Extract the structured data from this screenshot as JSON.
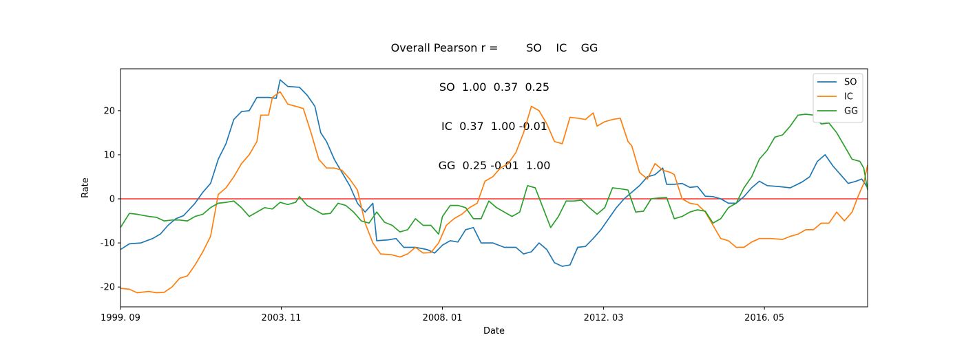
{
  "chart_data": {
    "type": "line",
    "title_lines": [
      "Overall Pearson r =        SO    IC    GG",
      "SO  1.00  0.37  0.25",
      "IC  0.37  1.00 -0.01",
      "GG  0.25 -0.01  1.00"
    ],
    "xlabel": "Date",
    "ylabel": "Rate",
    "xlim": [
      1999.67,
      2019.0
    ],
    "ylim": [
      -24.5,
      29.5
    ],
    "x_ticks": [
      {
        "label": "1999. 09",
        "x": 1999.67
      },
      {
        "label": "2003. 11",
        "x": 2003.83
      },
      {
        "label": "2008. 01",
        "x": 2008.0
      },
      {
        "label": "2012. 03",
        "x": 2012.17
      },
      {
        "label": "2016. 05",
        "x": 2016.33
      }
    ],
    "y_ticks": [
      -20,
      -10,
      0,
      10,
      20
    ],
    "reference_line": {
      "y": 0,
      "color": "#ff0000"
    },
    "legend": "top-right",
    "series": [
      {
        "name": "SO",
        "color": "#1f77b4",
        "points": [
          [
            1999.67,
            -11.5
          ],
          [
            1999.9,
            -10.2
          ],
          [
            2000.2,
            -10.0
          ],
          [
            2000.5,
            -9.0
          ],
          [
            2000.7,
            -8.0
          ],
          [
            2000.9,
            -6.0
          ],
          [
            2001.1,
            -4.5
          ],
          [
            2001.3,
            -3.8
          ],
          [
            2001.6,
            -1.0
          ],
          [
            2001.8,
            1.5
          ],
          [
            2002.0,
            3.5
          ],
          [
            2002.2,
            9.0
          ],
          [
            2002.4,
            12.5
          ],
          [
            2002.6,
            18.0
          ],
          [
            2002.8,
            19.8
          ],
          [
            2003.0,
            20.0
          ],
          [
            2003.2,
            23.0
          ],
          [
            2003.5,
            23.0
          ],
          [
            2003.7,
            22.8
          ],
          [
            2003.8,
            27.0
          ],
          [
            2004.0,
            25.5
          ],
          [
            2004.3,
            25.3
          ],
          [
            2004.5,
            23.5
          ],
          [
            2004.7,
            21.0
          ],
          [
            2004.85,
            15.0
          ],
          [
            2005.0,
            13.0
          ],
          [
            2005.2,
            9.0
          ],
          [
            2005.4,
            6.0
          ],
          [
            2005.6,
            3.0
          ],
          [
            2005.8,
            -1.0
          ],
          [
            2006.0,
            -3.0
          ],
          [
            2006.2,
            -1.0
          ],
          [
            2006.3,
            -9.5
          ],
          [
            2006.6,
            -9.3
          ],
          [
            2006.8,
            -9.0
          ],
          [
            2007.0,
            -11.0
          ],
          [
            2007.3,
            -11.0
          ],
          [
            2007.6,
            -11.5
          ],
          [
            2007.8,
            -12.3
          ],
          [
            2008.0,
            -10.5
          ],
          [
            2008.2,
            -9.5
          ],
          [
            2008.4,
            -9.8
          ],
          [
            2008.6,
            -7.0
          ],
          [
            2008.8,
            -6.5
          ],
          [
            2009.0,
            -10.0
          ],
          [
            2009.3,
            -10.0
          ],
          [
            2009.6,
            -11.0
          ],
          [
            2009.9,
            -11.0
          ],
          [
            2010.1,
            -12.5
          ],
          [
            2010.3,
            -12.0
          ],
          [
            2010.5,
            -10.0
          ],
          [
            2010.7,
            -11.5
          ],
          [
            2010.9,
            -14.5
          ],
          [
            2011.1,
            -15.3
          ],
          [
            2011.3,
            -15.0
          ],
          [
            2011.5,
            -11.0
          ],
          [
            2011.7,
            -10.8
          ],
          [
            2011.9,
            -9.0
          ],
          [
            2012.1,
            -7.0
          ],
          [
            2012.3,
            -4.5
          ],
          [
            2012.5,
            -2.0
          ],
          [
            2012.7,
            0.0
          ],
          [
            2012.9,
            1.5
          ],
          [
            2013.1,
            3.0
          ],
          [
            2013.3,
            5.0
          ],
          [
            2013.5,
            5.5
          ],
          [
            2013.7,
            7.0
          ],
          [
            2013.8,
            3.3
          ],
          [
            2014.0,
            3.3
          ],
          [
            2014.2,
            3.5
          ],
          [
            2014.4,
            2.6
          ],
          [
            2014.6,
            2.8
          ],
          [
            2014.8,
            0.6
          ],
          [
            2015.0,
            0.5
          ],
          [
            2015.2,
            0.0
          ],
          [
            2015.4,
            -1.0
          ],
          [
            2015.6,
            -1.0
          ],
          [
            2015.8,
            0.5
          ],
          [
            2016.0,
            2.5
          ],
          [
            2016.2,
            4.0
          ],
          [
            2016.4,
            3.0
          ],
          [
            2016.7,
            2.8
          ],
          [
            2017.0,
            2.5
          ],
          [
            2017.3,
            3.8
          ],
          [
            2017.5,
            5.0
          ],
          [
            2017.7,
            8.5
          ],
          [
            2017.9,
            10.0
          ],
          [
            2018.1,
            7.5
          ],
          [
            2018.3,
            5.5
          ],
          [
            2018.5,
            3.5
          ],
          [
            2018.7,
            4.0
          ],
          [
            2018.85,
            4.5
          ],
          [
            2019.0,
            2.5
          ]
        ]
      },
      {
        "name": "IC",
        "color": "#ff7f0e",
        "points": [
          [
            1999.67,
            -20.3
          ],
          [
            1999.9,
            -20.5
          ],
          [
            2000.1,
            -21.3
          ],
          [
            2000.4,
            -21.0
          ],
          [
            2000.6,
            -21.3
          ],
          [
            2000.8,
            -21.2
          ],
          [
            2001.0,
            -20.0
          ],
          [
            2001.2,
            -18.0
          ],
          [
            2001.4,
            -17.5
          ],
          [
            2001.6,
            -15.0
          ],
          [
            2001.8,
            -12.0
          ],
          [
            2002.0,
            -8.5
          ],
          [
            2002.2,
            1.0
          ],
          [
            2002.4,
            2.5
          ],
          [
            2002.6,
            5.0
          ],
          [
            2002.8,
            8.0
          ],
          [
            2003.0,
            10.0
          ],
          [
            2003.2,
            13.0
          ],
          [
            2003.3,
            19.0
          ],
          [
            2003.5,
            19.0
          ],
          [
            2003.6,
            23.0
          ],
          [
            2003.8,
            24.3
          ],
          [
            2004.0,
            21.5
          ],
          [
            2004.2,
            21.0
          ],
          [
            2004.4,
            20.5
          ],
          [
            2004.6,
            15.0
          ],
          [
            2004.8,
            9.0
          ],
          [
            2005.0,
            7.0
          ],
          [
            2005.2,
            7.0
          ],
          [
            2005.4,
            6.5
          ],
          [
            2005.6,
            4.5
          ],
          [
            2005.8,
            2.0
          ],
          [
            2006.0,
            -5.5
          ],
          [
            2006.2,
            -10.0
          ],
          [
            2006.4,
            -12.5
          ],
          [
            2006.7,
            -12.7
          ],
          [
            2006.9,
            -13.2
          ],
          [
            2007.1,
            -12.5
          ],
          [
            2007.3,
            -11.0
          ],
          [
            2007.5,
            -12.3
          ],
          [
            2007.7,
            -12.2
          ],
          [
            2007.9,
            -10.0
          ],
          [
            2008.1,
            -6.0
          ],
          [
            2008.3,
            -4.5
          ],
          [
            2008.5,
            -3.5
          ],
          [
            2008.7,
            -2.0
          ],
          [
            2008.9,
            -1.0
          ],
          [
            2009.1,
            4.0
          ],
          [
            2009.3,
            5.0
          ],
          [
            2009.5,
            7.0
          ],
          [
            2009.7,
            8.0
          ],
          [
            2009.9,
            10.5
          ],
          [
            2010.1,
            15.0
          ],
          [
            2010.3,
            21.0
          ],
          [
            2010.5,
            20.0
          ],
          [
            2010.7,
            17.0
          ],
          [
            2010.9,
            13.0
          ],
          [
            2011.1,
            12.5
          ],
          [
            2011.3,
            18.5
          ],
          [
            2011.5,
            18.3
          ],
          [
            2011.7,
            18.0
          ],
          [
            2011.9,
            19.5
          ],
          [
            2012.0,
            16.5
          ],
          [
            2012.2,
            17.5
          ],
          [
            2012.4,
            18.0
          ],
          [
            2012.6,
            18.3
          ],
          [
            2012.8,
            13.0
          ],
          [
            2012.9,
            12.0
          ],
          [
            2013.1,
            6.0
          ],
          [
            2013.3,
            4.5
          ],
          [
            2013.5,
            8.0
          ],
          [
            2013.7,
            6.5
          ],
          [
            2013.9,
            6.0
          ],
          [
            2014.0,
            5.5
          ],
          [
            2014.2,
            0.0
          ],
          [
            2014.4,
            -1.0
          ],
          [
            2014.6,
            -1.3
          ],
          [
            2014.8,
            -3.0
          ],
          [
            2015.0,
            -6.0
          ],
          [
            2015.2,
            -9.0
          ],
          [
            2015.4,
            -9.5
          ],
          [
            2015.6,
            -11.0
          ],
          [
            2015.8,
            -11.0
          ],
          [
            2016.0,
            -9.8
          ],
          [
            2016.2,
            -9.0
          ],
          [
            2016.5,
            -9.0
          ],
          [
            2016.8,
            -9.2
          ],
          [
            2017.0,
            -8.5
          ],
          [
            2017.2,
            -8.0
          ],
          [
            2017.4,
            -7.0
          ],
          [
            2017.6,
            -7.0
          ],
          [
            2017.8,
            -5.5
          ],
          [
            2018.0,
            -5.5
          ],
          [
            2018.2,
            -3.0
          ],
          [
            2018.4,
            -5.0
          ],
          [
            2018.6,
            -3.0
          ],
          [
            2018.75,
            0.5
          ],
          [
            2018.9,
            3.5
          ],
          [
            2019.0,
            7.7
          ]
        ]
      },
      {
        "name": "GG",
        "color": "#2ca02c",
        "points": [
          [
            1999.67,
            -6.5
          ],
          [
            1999.9,
            -3.3
          ],
          [
            2000.1,
            -3.5
          ],
          [
            2000.4,
            -4.0
          ],
          [
            2000.6,
            -4.2
          ],
          [
            2000.8,
            -5.0
          ],
          [
            2001.0,
            -4.8
          ],
          [
            2001.2,
            -4.8
          ],
          [
            2001.4,
            -5.0
          ],
          [
            2001.6,
            -4.0
          ],
          [
            2001.8,
            -3.5
          ],
          [
            2002.0,
            -2.0
          ],
          [
            2002.2,
            -1.0
          ],
          [
            2002.4,
            -0.8
          ],
          [
            2002.6,
            -0.5
          ],
          [
            2002.8,
            -2.0
          ],
          [
            2003.0,
            -4.0
          ],
          [
            2003.2,
            -3.0
          ],
          [
            2003.4,
            -2.0
          ],
          [
            2003.6,
            -2.3
          ],
          [
            2003.8,
            -0.8
          ],
          [
            2004.0,
            -1.3
          ],
          [
            2004.2,
            -0.8
          ],
          [
            2004.3,
            0.5
          ],
          [
            2004.5,
            -1.5
          ],
          [
            2004.7,
            -2.5
          ],
          [
            2004.9,
            -3.5
          ],
          [
            2005.1,
            -3.3
          ],
          [
            2005.3,
            -1.0
          ],
          [
            2005.5,
            -1.5
          ],
          [
            2005.7,
            -3.0
          ],
          [
            2005.9,
            -5.0
          ],
          [
            2006.1,
            -5.5
          ],
          [
            2006.3,
            -3.0
          ],
          [
            2006.5,
            -5.3
          ],
          [
            2006.7,
            -6.0
          ],
          [
            2006.9,
            -7.5
          ],
          [
            2007.1,
            -7.0
          ],
          [
            2007.3,
            -4.5
          ],
          [
            2007.5,
            -6.0
          ],
          [
            2007.7,
            -6.0
          ],
          [
            2007.9,
            -8.0
          ],
          [
            2008.0,
            -4.0
          ],
          [
            2008.2,
            -1.5
          ],
          [
            2008.4,
            -1.5
          ],
          [
            2008.6,
            -2.0
          ],
          [
            2008.8,
            -4.5
          ],
          [
            2009.0,
            -4.5
          ],
          [
            2009.2,
            -0.5
          ],
          [
            2009.4,
            -2.0
          ],
          [
            2009.6,
            -3.0
          ],
          [
            2009.8,
            -4.0
          ],
          [
            2010.0,
            -3.0
          ],
          [
            2010.2,
            3.0
          ],
          [
            2010.4,
            2.5
          ],
          [
            2010.6,
            -2.0
          ],
          [
            2010.8,
            -6.5
          ],
          [
            2011.0,
            -4.0
          ],
          [
            2011.2,
            -0.5
          ],
          [
            2011.4,
            -0.5
          ],
          [
            2011.6,
            -0.3
          ],
          [
            2011.8,
            -2.0
          ],
          [
            2012.0,
            -3.5
          ],
          [
            2012.2,
            -2.0
          ],
          [
            2012.4,
            2.5
          ],
          [
            2012.6,
            2.3
          ],
          [
            2012.8,
            2.0
          ],
          [
            2013.0,
            -3.0
          ],
          [
            2013.2,
            -2.8
          ],
          [
            2013.4,
            0.0
          ],
          [
            2013.6,
            0.2
          ],
          [
            2013.8,
            0.3
          ],
          [
            2014.0,
            -4.5
          ],
          [
            2014.2,
            -4.0
          ],
          [
            2014.4,
            -3.0
          ],
          [
            2014.6,
            -2.5
          ],
          [
            2014.8,
            -2.8
          ],
          [
            2015.0,
            -5.5
          ],
          [
            2015.2,
            -4.5
          ],
          [
            2015.4,
            -2.0
          ],
          [
            2015.6,
            -1.0
          ],
          [
            2015.8,
            2.5
          ],
          [
            2016.0,
            5.0
          ],
          [
            2016.2,
            9.0
          ],
          [
            2016.4,
            11.0
          ],
          [
            2016.6,
            14.0
          ],
          [
            2016.8,
            14.5
          ],
          [
            2017.0,
            16.5
          ],
          [
            2017.2,
            19.0
          ],
          [
            2017.4,
            19.2
          ],
          [
            2017.6,
            19.0
          ],
          [
            2017.8,
            17.0
          ],
          [
            2018.0,
            17.2
          ],
          [
            2018.2,
            15.0
          ],
          [
            2018.4,
            12.0
          ],
          [
            2018.6,
            9.0
          ],
          [
            2018.8,
            8.5
          ],
          [
            2018.9,
            7.0
          ],
          [
            2019.0,
            2.0
          ]
        ]
      }
    ]
  }
}
